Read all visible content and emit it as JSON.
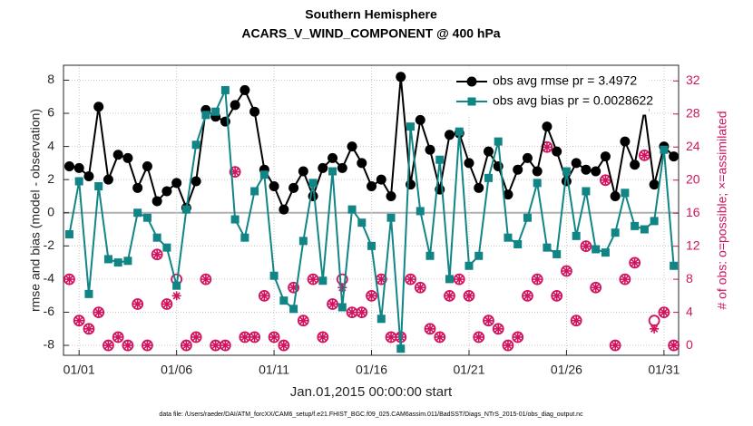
{
  "chart_data": {
    "type": "line",
    "title": "Southern Hemisphere",
    "subtitle": "ACARS_V_WIND_COMPONENT @ 400 hPa",
    "xlabel": "Jan.01,2015 00:00:00 start",
    "ylabel": "rmse and bias (model - observation)",
    "y2label": "# of obs: o=possible; ×=assimilated",
    "footnote": "data file: /Users/raeder/DAI/ATM_forcXX/CAM6_setup/f.e21.FHIST_BGC.f09_025.CAM6assim.011/BadSST/Diags_NTrS_2015-01/obs_diag_output.nc",
    "x": [
      -0.5,
      0,
      0.5,
      1,
      1.5,
      2,
      2.5,
      3,
      3.5,
      4,
      4.5,
      5,
      5.5,
      6,
      6.5,
      7,
      7.5,
      8,
      8.5,
      9,
      9.5,
      10,
      10.5,
      11,
      11.5,
      12,
      12.5,
      13,
      13.5,
      14,
      14.5,
      15,
      15.5,
      16,
      16.5,
      17,
      17.5,
      18,
      18.5,
      19,
      19.5,
      20,
      20.5,
      21,
      21.5,
      22,
      22.5,
      23,
      23.5,
      24,
      24.5,
      25,
      25.5,
      26,
      26.5,
      27,
      27.5,
      28,
      28.5,
      29,
      29.5,
      30,
      30.5
    ],
    "xlim": [
      -0.8,
      30.75
    ],
    "xticks": [
      {
        "value": 0,
        "label": "01/01"
      },
      {
        "value": 5,
        "label": "01/06"
      },
      {
        "value": 10,
        "label": "01/11"
      },
      {
        "value": 15,
        "label": "01/16"
      },
      {
        "value": 20,
        "label": "01/21"
      },
      {
        "value": 25,
        "label": "01/26"
      },
      {
        "value": 30,
        "label": "01/31"
      }
    ],
    "ylim": [
      -8.6,
      8.9
    ],
    "yticks": [
      -8,
      -6,
      -4,
      -2,
      0,
      2,
      4,
      6,
      8
    ],
    "y2lim": [
      -1.2,
      33.9
    ],
    "y2ticks": [
      0,
      4,
      8,
      12,
      16,
      20,
      24,
      28,
      32
    ],
    "grid": true,
    "legend": "upper right",
    "series": [
      {
        "name": "obs avg rmse pr = 3.4972",
        "color": "#000000",
        "marker": "circle",
        "line": true,
        "values": [
          2.8,
          2.7,
          2.2,
          6.4,
          2.0,
          3.5,
          3.3,
          1.5,
          2.8,
          0.7,
          1.3,
          1.8,
          0.3,
          1.9,
          6.2,
          5.8,
          5.5,
          6.5,
          7.4,
          6.1,
          2.6,
          1.6,
          0.2,
          1.5,
          2.5,
          1.0,
          2.7,
          3.3,
          2.7,
          4.0,
          3.0,
          1.6,
          2.0,
          1.0,
          8.2,
          1.7,
          5.6,
          3.8,
          1.4,
          4.7,
          4.8,
          3.0,
          1.5,
          3.7,
          2.8,
          1.1,
          2.6,
          3.3,
          2.5,
          5.2,
          3.7,
          1.9,
          3.0,
          2.6,
          2.5,
          3.4,
          1.0,
          4.3,
          2.9,
          6.2,
          1.7,
          4.0,
          3.4
        ]
      },
      {
        "name": "obs avg bias pr = 0.0028622",
        "color": "#118585",
        "marker": "square",
        "line": true,
        "values": [
          -1.3,
          1.9,
          -4.9,
          1.6,
          -2.8,
          -3.0,
          -2.9,
          0.0,
          -0.3,
          -1.5,
          -2.1,
          -4.4,
          0.2,
          4.1,
          5.9,
          6.1,
          7.4,
          -0.4,
          -1.5,
          1.3,
          2.3,
          -3.8,
          -5.3,
          -5.8,
          -1.7,
          1.8,
          -4.1,
          2.5,
          -5.7,
          0.2,
          -0.6,
          -2.0,
          -6.4,
          -0.3,
          -8.2,
          5.2,
          0.1,
          -2.6,
          3.2,
          -4.0,
          4.9,
          -3.2,
          -2.6,
          2.1,
          4.3,
          -1.5,
          -1.9,
          -0.3,
          1.8,
          -2.1,
          -2.5,
          2.5,
          -1.4,
          1.3,
          -2.2,
          -2.4,
          -1.2,
          1.2,
          -0.8,
          -1.0,
          -0.5,
          3.8,
          -3.2
        ]
      },
      {
        "color": "#d0145f",
        "marker": "open-circle",
        "line": false,
        "axis": "y2",
        "values": [
          8,
          3,
          2,
          4,
          0,
          1,
          0,
          5,
          0,
          11,
          5,
          8,
          0,
          1,
          8,
          0,
          0,
          21,
          1,
          1,
          6,
          1,
          0,
          7,
          3,
          8,
          1,
          5,
          8,
          4,
          4,
          6,
          8,
          1,
          1,
          8,
          7,
          2,
          1,
          6,
          8,
          6,
          1,
          3,
          2,
          0,
          1,
          6,
          8,
          24,
          6,
          9,
          3,
          12,
          7,
          20,
          0,
          8,
          10,
          23,
          3,
          4,
          0
        ]
      },
      {
        "color": "#d0145f",
        "marker": "asterisk",
        "line": false,
        "axis": "y2",
        "values": [
          8,
          3,
          2,
          4,
          0,
          1,
          0,
          5,
          0,
          11,
          5,
          6,
          0,
          1,
          8,
          0,
          0,
          21,
          1,
          1,
          6,
          1,
          0,
          7,
          3,
          8,
          1,
          5,
          7,
          4,
          4,
          6,
          8,
          1,
          1,
          8,
          7,
          2,
          1,
          6,
          8,
          6,
          1,
          3,
          2,
          0,
          1,
          6,
          8,
          24,
          6,
          9,
          3,
          12,
          7,
          20,
          0,
          8,
          10,
          23,
          2,
          4,
          0
        ]
      }
    ]
  }
}
